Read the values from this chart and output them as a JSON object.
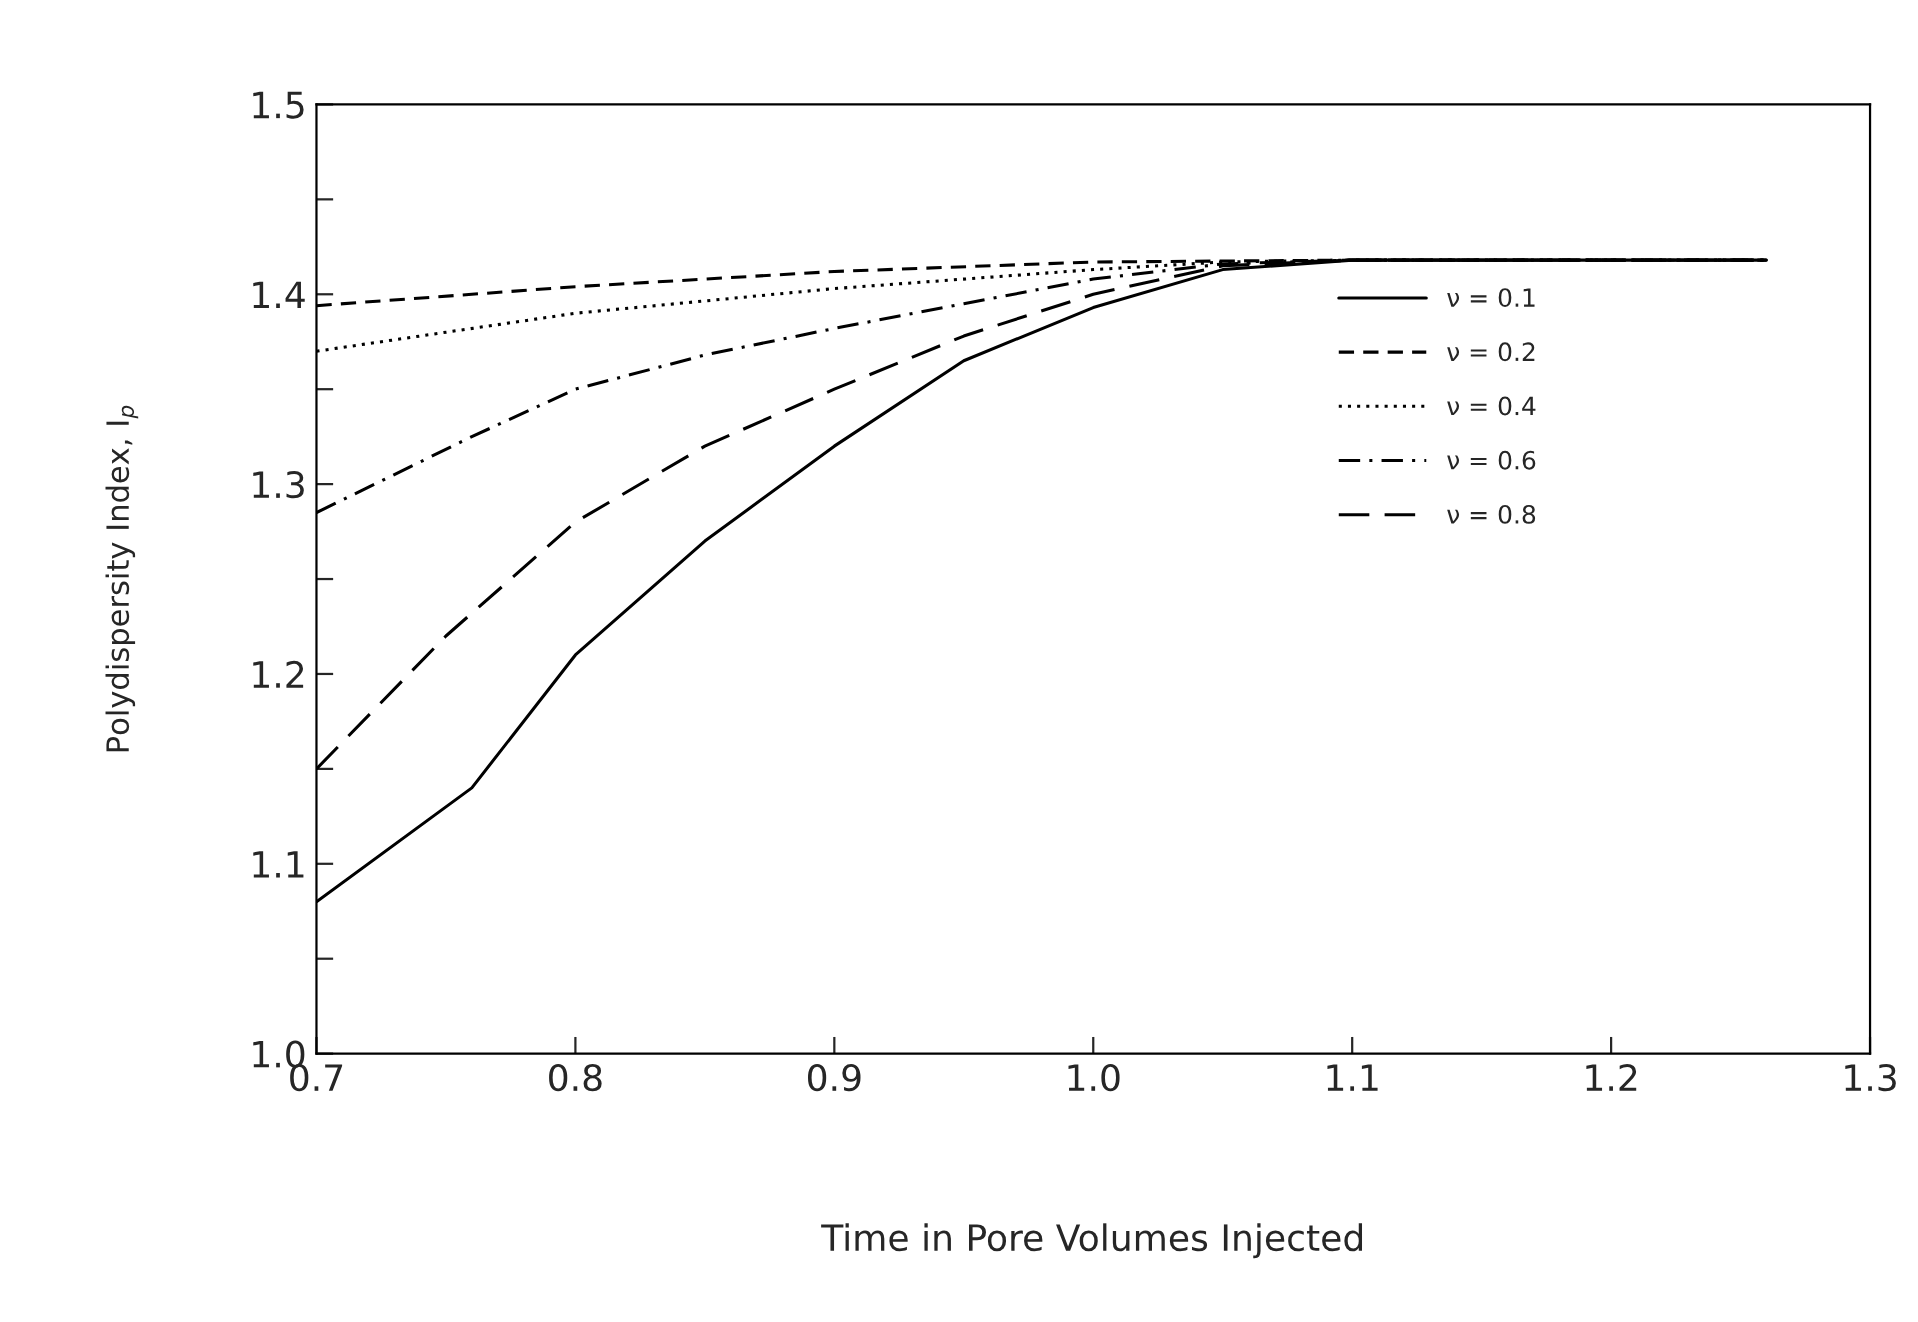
{
  "chart_data": {
    "type": "line",
    "xlabel": "Time in Pore Volumes Injected",
    "ylabel": "Polydispersity Index, I$_{p}$",
    "xlim": [
      0.7,
      1.3
    ],
    "xticks": [
      0.7,
      0.8,
      0.9,
      {
        "value": 1.0,
        "label": "1.0"
      },
      1.1,
      1.2,
      1.3
    ],
    "ylim": [
      1.0,
      1.5
    ],
    "yticks": [
      {
        "value": 1.0,
        "label": "1.0"
      },
      {
        "value": 1.05,
        "label": null
      },
      1.1,
      {
        "value": 1.15,
        "label": null
      },
      1.2,
      {
        "value": 1.25,
        "label": null
      },
      1.3,
      {
        "value": 1.35,
        "label": null
      },
      1.4,
      {
        "value": 1.45,
        "label": null
      },
      1.5
    ],
    "grid": false,
    "legend": "center right",
    "marker": "none",
    "series": [
      {
        "name": "ν = 0.1",
        "color": "#000000",
        "line_style": "solid",
        "x": [
          0.7,
          0.76,
          0.8,
          0.85,
          0.9,
          0.95,
          1.0,
          1.05,
          1.1,
          1.26
        ],
        "values": [
          1.08,
          1.14,
          1.21,
          1.27,
          1.32,
          1.365,
          1.393,
          1.413,
          1.418,
          1.418
        ]
      },
      {
        "name": "ν = 0.2",
        "color": "#000000",
        "line_style": "dashed",
        "x": [
          0.7,
          0.8,
          0.9,
          1.0,
          1.1,
          1.26
        ],
        "values": [
          1.394,
          1.404,
          1.412,
          1.417,
          1.418,
          1.418
        ]
      },
      {
        "name": "ν = 0.4",
        "color": "#000000",
        "line_style": "dotted",
        "x": [
          0.7,
          0.8,
          0.9,
          1.0,
          1.05,
          1.1,
          1.26
        ],
        "values": [
          1.37,
          1.39,
          1.403,
          1.413,
          1.417,
          1.418,
          1.418
        ]
      },
      {
        "name": "ν = 0.6",
        "color": "#000000",
        "line_style": "dashdot",
        "x": [
          0.7,
          0.76,
          0.8,
          0.85,
          0.9,
          0.95,
          1.0,
          1.05,
          1.1,
          1.26
        ],
        "values": [
          1.285,
          1.325,
          1.35,
          1.368,
          1.382,
          1.395,
          1.408,
          1.416,
          1.418,
          1.418
        ]
      },
      {
        "name": "ν = 0.8",
        "color": "#000000",
        "line_style": "longdashed",
        "x": [
          0.7,
          0.75,
          0.8,
          0.85,
          0.9,
          0.95,
          1.0,
          1.05,
          1.1,
          1.26
        ],
        "values": [
          1.15,
          1.22,
          1.28,
          1.32,
          1.35,
          1.378,
          1.4,
          1.415,
          1.418,
          1.418
        ]
      }
    ]
  }
}
